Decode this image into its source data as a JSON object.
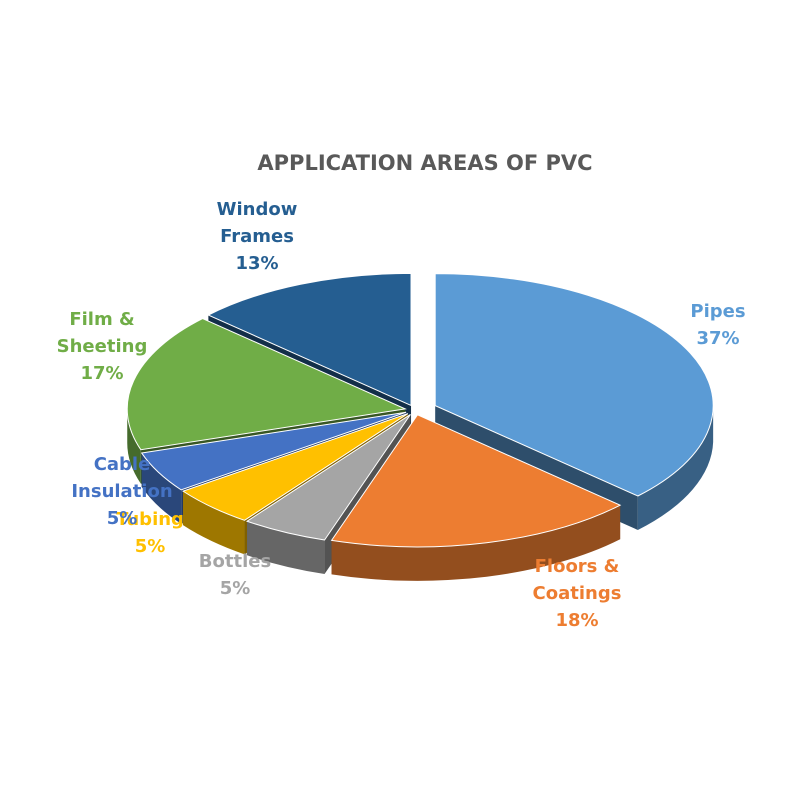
{
  "chart_data": {
    "type": "pie",
    "style": "3d-exploded",
    "title": "APPLICATION AREAS OF PVC",
    "slices": [
      {
        "name": "Pipes",
        "value": 37,
        "label_lines": [
          "Pipes",
          "37%"
        ],
        "color": "#5b9bd5"
      },
      {
        "name": "Floors & Coatings",
        "value": 18,
        "label_lines": [
          "Floors &",
          "Coatings",
          "18%"
        ],
        "color": "#ed7d31"
      },
      {
        "name": "Bottles",
        "value": 5,
        "label_lines": [
          "Bottles",
          "5%"
        ],
        "color": "#a5a5a5"
      },
      {
        "name": "Tubing",
        "value": 5,
        "label_lines": [
          "Tubing",
          "5%"
        ],
        "color": "#ffc000"
      },
      {
        "name": "Cable Insulation",
        "value": 5,
        "label_lines": [
          "Cable",
          "Insulation",
          "5%"
        ],
        "color": "#4472c4"
      },
      {
        "name": "Film & Sheeting",
        "value": 17,
        "label_lines": [
          "Film &",
          "Sheeting",
          "17%"
        ],
        "color": "#70ad47"
      },
      {
        "name": "Window Frames",
        "value": 13,
        "label_lines": [
          "Window",
          "Frames",
          "13%"
        ],
        "color": "#255e91"
      }
    ],
    "legend": "none"
  }
}
